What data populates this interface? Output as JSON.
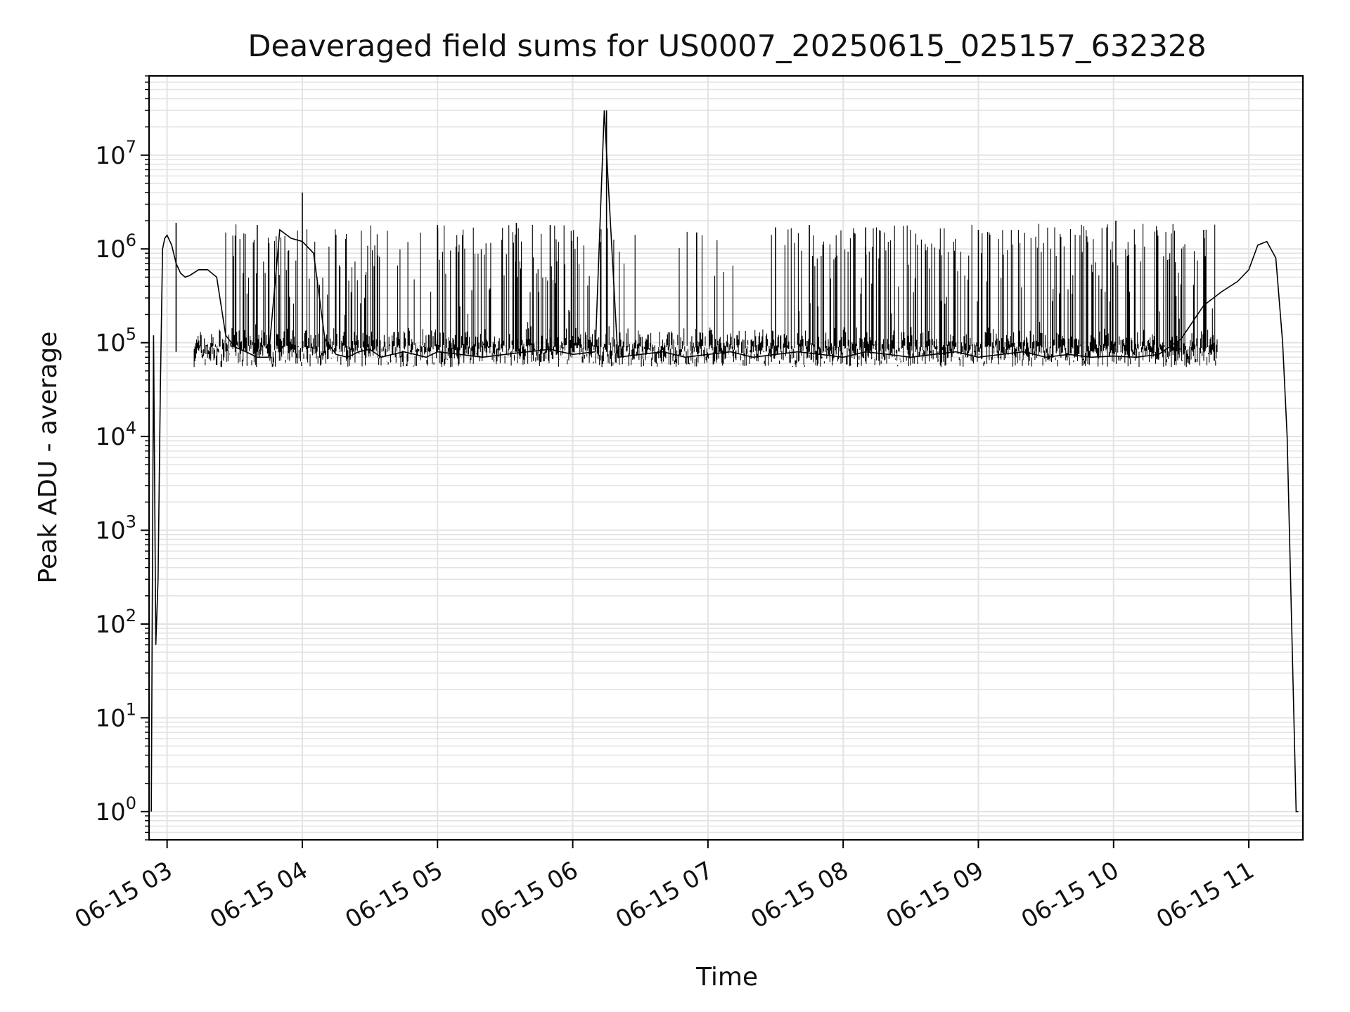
{
  "chart_data": {
    "type": "line",
    "title": "Deaveraged field sums for US0007_20250615_025157_632328",
    "xlabel": "Time",
    "ylabel": "Peak ADU - average",
    "yscale": "log",
    "ylim": [
      0.5,
      70000000
    ],
    "xlim": [
      "2025-06-15 02:52",
      "2025-06-15 11:24"
    ],
    "x_ticks": [
      {
        "t": "2025-06-15 03:00",
        "label": "06-15 03"
      },
      {
        "t": "2025-06-15 04:00",
        "label": "06-15 04"
      },
      {
        "t": "2025-06-15 05:00",
        "label": "06-15 05"
      },
      {
        "t": "2025-06-15 06:00",
        "label": "06-15 06"
      },
      {
        "t": "2025-06-15 07:00",
        "label": "06-15 07"
      },
      {
        "t": "2025-06-15 08:00",
        "label": "06-15 08"
      },
      {
        "t": "2025-06-15 09:00",
        "label": "06-15 09"
      },
      {
        "t": "2025-06-15 10:00",
        "label": "06-15 10"
      },
      {
        "t": "2025-06-15 11:00",
        "label": "06-15 11"
      }
    ],
    "y_ticks": [
      {
        "v": 1,
        "base": "10",
        "exp": "0"
      },
      {
        "v": 10,
        "base": "10",
        "exp": "1"
      },
      {
        "v": 100,
        "base": "10",
        "exp": "2"
      },
      {
        "v": 1000,
        "base": "10",
        "exp": "3"
      },
      {
        "v": 10000,
        "base": "10",
        "exp": "4"
      },
      {
        "v": 100000,
        "base": "10",
        "exp": "5"
      },
      {
        "v": 1000000,
        "base": "10",
        "exp": "6"
      },
      {
        "v": 10000000,
        "base": "10",
        "exp": "7"
      }
    ],
    "grid": true,
    "line_color": "#000000",
    "grid_color": "#e3e3e3",
    "series": [
      {
        "x": [
          "2025-06-15 02:53",
          "2025-06-15 02:54",
          "2025-06-15 02:55",
          "2025-06-15 02:56",
          "2025-06-15 02:57",
          "2025-06-15 02:58",
          "2025-06-15 02:59",
          "2025-06-15 03:00",
          "2025-06-15 03:02",
          "2025-06-15 03:04",
          "2025-06-15 03:06",
          "2025-06-15 03:08",
          "2025-06-15 03:10",
          "2025-06-15 03:14",
          "2025-06-15 03:18",
          "2025-06-15 03:22",
          "2025-06-15 03:26",
          "2025-06-15 03:30",
          "2025-06-15 03:35",
          "2025-06-15 03:40",
          "2025-06-15 03:45",
          "2025-06-15 03:50",
          "2025-06-15 03:55",
          "2025-06-15 04:00",
          "2025-06-15 04:05",
          "2025-06-15 04:10",
          "2025-06-15 04:15",
          "2025-06-15 04:20",
          "2025-06-15 04:25",
          "2025-06-15 04:30",
          "2025-06-15 04:35",
          "2025-06-15 04:40",
          "2025-06-15 04:45",
          "2025-06-15 04:50",
          "2025-06-15 04:55",
          "2025-06-15 05:00",
          "2025-06-15 05:10",
          "2025-06-15 05:20",
          "2025-06-15 05:30",
          "2025-06-15 05:40",
          "2025-06-15 05:50",
          "2025-06-15 06:00",
          "2025-06-15 06:10",
          "2025-06-15 06:14",
          "2025-06-15 06:20",
          "2025-06-15 06:30",
          "2025-06-15 06:40",
          "2025-06-15 06:50",
          "2025-06-15 07:00",
          "2025-06-15 07:10",
          "2025-06-15 07:20",
          "2025-06-15 07:30",
          "2025-06-15 07:40",
          "2025-06-15 07:50",
          "2025-06-15 08:00",
          "2025-06-15 08:10",
          "2025-06-15 08:20",
          "2025-06-15 08:30",
          "2025-06-15 08:40",
          "2025-06-15 08:50",
          "2025-06-15 09:00",
          "2025-06-15 09:10",
          "2025-06-15 09:20",
          "2025-06-15 09:30",
          "2025-06-15 09:40",
          "2025-06-15 09:50",
          "2025-06-15 10:00",
          "2025-06-15 10:10",
          "2025-06-15 10:20",
          "2025-06-15 10:30",
          "2025-06-15 10:40",
          "2025-06-15 10:48",
          "2025-06-15 10:55",
          "2025-06-15 11:00",
          "2025-06-15 11:04",
          "2025-06-15 11:08",
          "2025-06-15 11:12",
          "2025-06-15 11:15",
          "2025-06-15 11:17",
          "2025-06-15 11:19",
          "2025-06-15 11:21",
          "2025-06-15 11:22"
        ],
        "y": [
          1,
          120000,
          60,
          300,
          30000,
          1000000,
          1300000,
          1400000,
          1100000,
          700000,
          550000,
          500000,
          520000,
          600000,
          600000,
          500000,
          120000,
          90000,
          80000,
          70000,
          70000,
          1600000,
          1300000,
          1200000,
          900000,
          110000,
          75000,
          70000,
          80000,
          85000,
          70000,
          75000,
          80000,
          75000,
          70000,
          80000,
          75000,
          70000,
          75000,
          80000,
          85000,
          75000,
          80000,
          30000000,
          70000,
          75000,
          80000,
          70000,
          75000,
          80000,
          70000,
          75000,
          80000,
          75000,
          70000,
          80000,
          75000,
          70000,
          75000,
          80000,
          70000,
          75000,
          80000,
          70000,
          75000,
          70000,
          72000,
          70000,
          75000,
          110000,
          250000,
          350000,
          450000,
          600000,
          1100000,
          1200000,
          800000,
          100000,
          10000,
          100,
          1,
          1
        ],
        "spikes": [
          {
            "t": "2025-06-15 03:04",
            "v": 1900000
          },
          {
            "t": "2025-06-15 03:40",
            "v": 1800000
          },
          {
            "t": "2025-06-15 04:00",
            "v": 4000000
          },
          {
            "t": "2025-06-15 05:00",
            "v": 1800000
          },
          {
            "t": "2025-06-15 05:35",
            "v": 1900000
          },
          {
            "t": "2025-06-15 05:50",
            "v": 1800000
          },
          {
            "t": "2025-06-15 06:15",
            "v": 30000000
          },
          {
            "t": "2025-06-15 06:55",
            "v": 1500000
          },
          {
            "t": "2025-06-15 07:30",
            "v": 1700000
          },
          {
            "t": "2025-06-15 07:45",
            "v": 1800000
          },
          {
            "t": "2025-06-15 08:10",
            "v": 1700000
          },
          {
            "t": "2025-06-15 09:00",
            "v": 1600000
          },
          {
            "t": "2025-06-15 10:01",
            "v": 2000000
          },
          {
            "t": "2025-06-15 10:40",
            "v": 1600000
          }
        ]
      }
    ]
  }
}
